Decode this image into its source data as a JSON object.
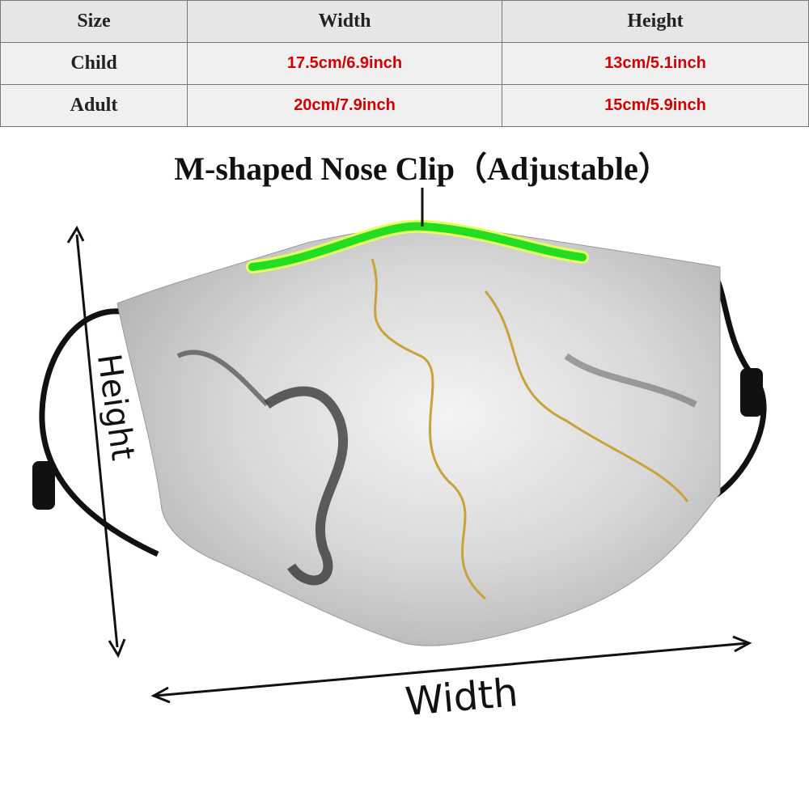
{
  "table": {
    "header": [
      "Size",
      "Width",
      "Height"
    ],
    "rows": [
      [
        "Child",
        "17.5cm/6.9inch",
        "13cm/5.1inch"
      ],
      [
        "Adult",
        "20cm/7.9inch",
        "15cm/5.9inch"
      ]
    ]
  },
  "labels": {
    "nose_clip": "M-shaped Nose Clip（Adjustable）",
    "height": "Height",
    "width": "Width"
  }
}
